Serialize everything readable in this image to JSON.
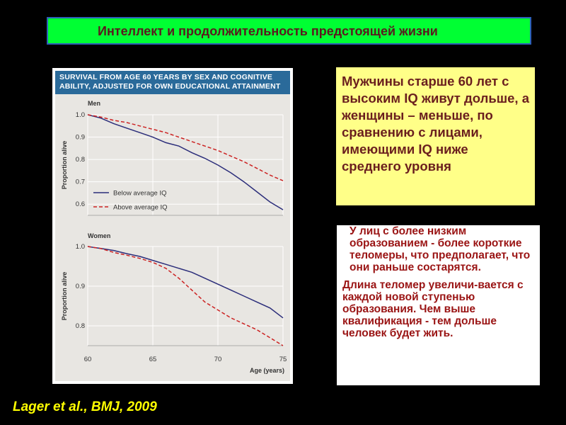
{
  "banner": {
    "title": "Интеллект и продолжительность предстоящей жизни"
  },
  "figure": {
    "header_line1": "SURVIVAL FROM AGE 60 YEARS BY SEX AND COGNITIVE",
    "header_line2": "ABILITY, ADJUSTED FOR OWN EDUCATIONAL ATTAINMENT"
  },
  "callout_yellow": {
    "text": "Мужчины старше 60 лет с высоким IQ живут дольше, а женщины – меньше, по сравнению с лицами, имеющими IQ ниже среднего уровня"
  },
  "callout_white": {
    "paragraph1": "У лиц с более низким образованием - более короткие теломеры, что предполагает, что они раньше состарятся.",
    "paragraph2": "Длина теломер увеличи-вается с каждой новой ступенью образования. Чем выше квалификация - тем дольше человек будет жить."
  },
  "citation": "Lager et al., BMJ, 2009",
  "colors": {
    "below_average": "#2b2d7a",
    "above_average": "#cc2222",
    "header_bg": "#2a6a9a",
    "banner_bg": "#00ff33"
  },
  "chart_data": [
    {
      "type": "line",
      "title": "Men",
      "ylabel": "Proportion alive",
      "xlabel": "",
      "xlim": [
        60,
        75
      ],
      "ylim": [
        0.55,
        1.0
      ],
      "yticks": [
        "1.0",
        "0.9",
        "0.8",
        "0.7",
        "0.6"
      ],
      "legend_position": "bottom-left",
      "series": [
        {
          "name": "Below average IQ",
          "style": "solid",
          "x": [
            60,
            61,
            62,
            63,
            64,
            65,
            66,
            67,
            68,
            69,
            70,
            71,
            72,
            73,
            74,
            75
          ],
          "y": [
            1.0,
            0.985,
            0.96,
            0.94,
            0.92,
            0.9,
            0.875,
            0.86,
            0.83,
            0.805,
            0.775,
            0.74,
            0.7,
            0.655,
            0.61,
            0.575
          ]
        },
        {
          "name": "Above average IQ",
          "style": "dashed",
          "x": [
            60,
            61,
            62,
            63,
            64,
            65,
            66,
            67,
            68,
            69,
            70,
            71,
            72,
            73,
            74,
            75
          ],
          "y": [
            1.0,
            0.99,
            0.975,
            0.965,
            0.95,
            0.935,
            0.92,
            0.9,
            0.88,
            0.86,
            0.84,
            0.815,
            0.79,
            0.76,
            0.73,
            0.705
          ]
        }
      ]
    },
    {
      "type": "line",
      "title": "Women",
      "ylabel": "Proportion alive",
      "xlabel": "Age (years)",
      "xlim": [
        60,
        75
      ],
      "ylim": [
        0.75,
        1.0
      ],
      "yticks": [
        "1.0",
        "0.9",
        "0.8"
      ],
      "xticks": [
        "60",
        "65",
        "70",
        "75"
      ],
      "series": [
        {
          "name": "Below average IQ",
          "style": "solid",
          "x": [
            60,
            61,
            62,
            63,
            64,
            65,
            66,
            67,
            68,
            69,
            70,
            71,
            72,
            73,
            74,
            75
          ],
          "y": [
            1.0,
            0.995,
            0.99,
            0.982,
            0.975,
            0.965,
            0.955,
            0.945,
            0.935,
            0.92,
            0.905,
            0.89,
            0.875,
            0.86,
            0.845,
            0.82
          ]
        },
        {
          "name": "Above average IQ",
          "style": "dashed",
          "x": [
            60,
            61,
            62,
            63,
            64,
            65,
            66,
            67,
            68,
            69,
            70,
            71,
            72,
            73,
            74,
            75
          ],
          "y": [
            1.0,
            0.995,
            0.985,
            0.978,
            0.97,
            0.96,
            0.945,
            0.92,
            0.89,
            0.86,
            0.84,
            0.82,
            0.805,
            0.79,
            0.77,
            0.75
          ]
        }
      ]
    }
  ]
}
